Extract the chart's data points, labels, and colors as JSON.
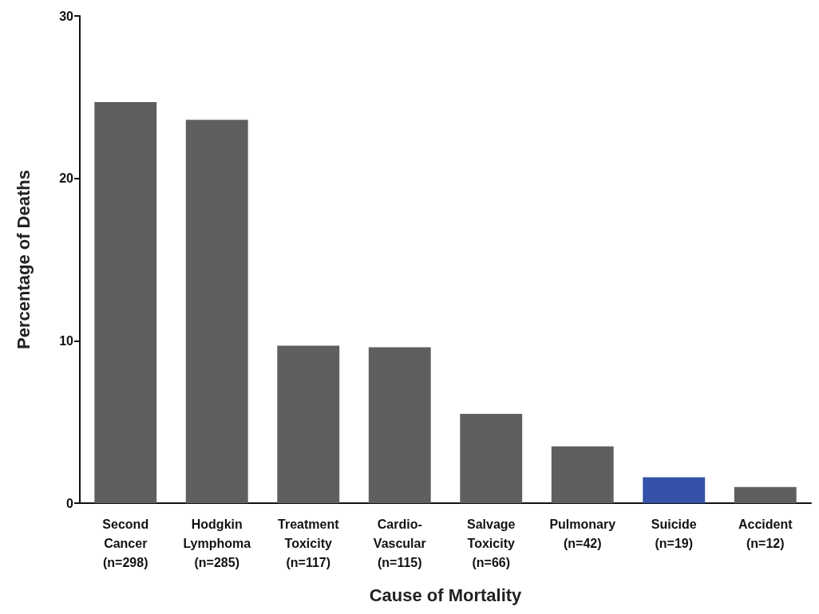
{
  "chart_data": {
    "type": "bar",
    "xlabel": "Cause of Mortality",
    "ylabel": "Percentage of Deaths",
    "categories": [
      "Second\nCancer\n(n=298)",
      "Hodgkin\nLymphoma\n(n=285)",
      "Treatment\nToxicity\n(n=117)",
      "Cardio-\nVascular\n(n=115)",
      "Salvage\nToxicity\n(n=66)",
      "Pulmonary\n(n=42)",
      "Suicide\n(n=19)",
      "Accident\n(n=12)"
    ],
    "values": [
      24.7,
      23.6,
      9.7,
      9.6,
      5.5,
      3.5,
      1.6,
      1.0
    ],
    "colors": [
      "#5f5f5f",
      "#5f5f5f",
      "#5f5f5f",
      "#5f5f5f",
      "#5f5f5f",
      "#5f5f5f",
      "#3352a8",
      "#5f5f5f"
    ],
    "ylim": [
      0,
      30
    ],
    "yticks": [
      0,
      10,
      20,
      30
    ],
    "grid": false
  }
}
